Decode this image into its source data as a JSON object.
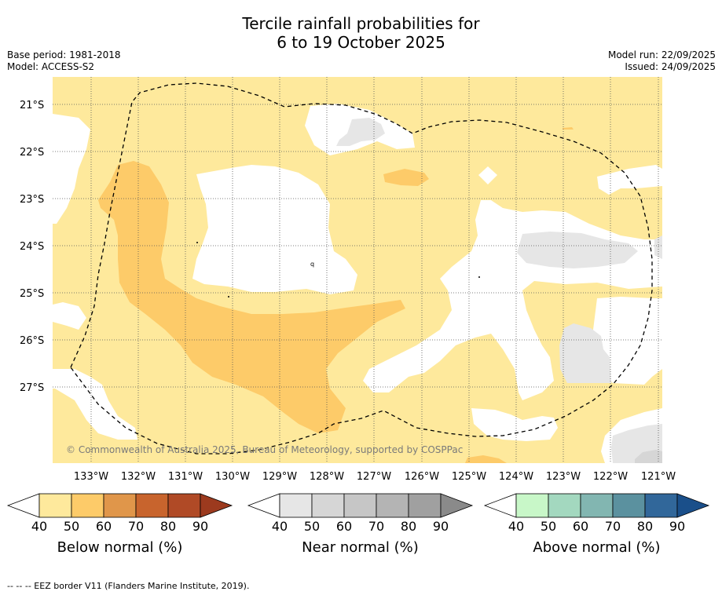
{
  "title": {
    "line1": "Tercile rainfall probabilities for",
    "line2": "6 to 19 October 2025"
  },
  "meta": {
    "base_period": "Base period: 1981-2018",
    "model": "Model: ACCESS-S2",
    "model_run": "Model run: 22/09/2025",
    "issued": "Issued: 24/09/2025"
  },
  "map": {
    "lat_labels": [
      "21°S",
      "22°S",
      "23°S",
      "24°S",
      "25°S",
      "26°S",
      "27°S"
    ],
    "lon_labels": [
      "133°W",
      "132°W",
      "131°W",
      "130°W",
      "129°W",
      "128°W",
      "127°W",
      "126°W",
      "125°W",
      "124°W",
      "123°W",
      "122°W",
      "121°W"
    ],
    "copyright": "© Commonwealth of Australia 2025, Bureau of Meteorology, supported by COSPPac",
    "colors": {
      "below_40": "#fee99c",
      "below_50": "#fdcb69",
      "near_40": "#e6e6e6",
      "white": "#ffffff"
    }
  },
  "colorbars": [
    {
      "name": "below",
      "label": "Below normal (%)",
      "ticks": [
        "40",
        "50",
        "60",
        "70",
        "80",
        "90"
      ],
      "colors": [
        "#fee99c",
        "#fdcb69",
        "#e0964a",
        "#c8642d",
        "#b04a26",
        "#9c3a1e"
      ]
    },
    {
      "name": "near",
      "label": "Near normal (%)",
      "ticks": [
        "40",
        "50",
        "60",
        "70",
        "80",
        "90"
      ],
      "colors": [
        "#e6e6e6",
        "#d6d6d6",
        "#c6c6c6",
        "#b4b4b4",
        "#a0a0a0",
        "#8a8a8a"
      ]
    },
    {
      "name": "above",
      "label": "Above normal (%)",
      "ticks": [
        "40",
        "50",
        "60",
        "70",
        "80",
        "90"
      ],
      "colors": [
        "#c8f7c8",
        "#a3d8bf",
        "#82b6b1",
        "#5b919f",
        "#31679a",
        "#1a4f8a"
      ]
    }
  ],
  "footer": "--  --  -- EEZ border V11 (Flanders Marine Institute, 2019)."
}
